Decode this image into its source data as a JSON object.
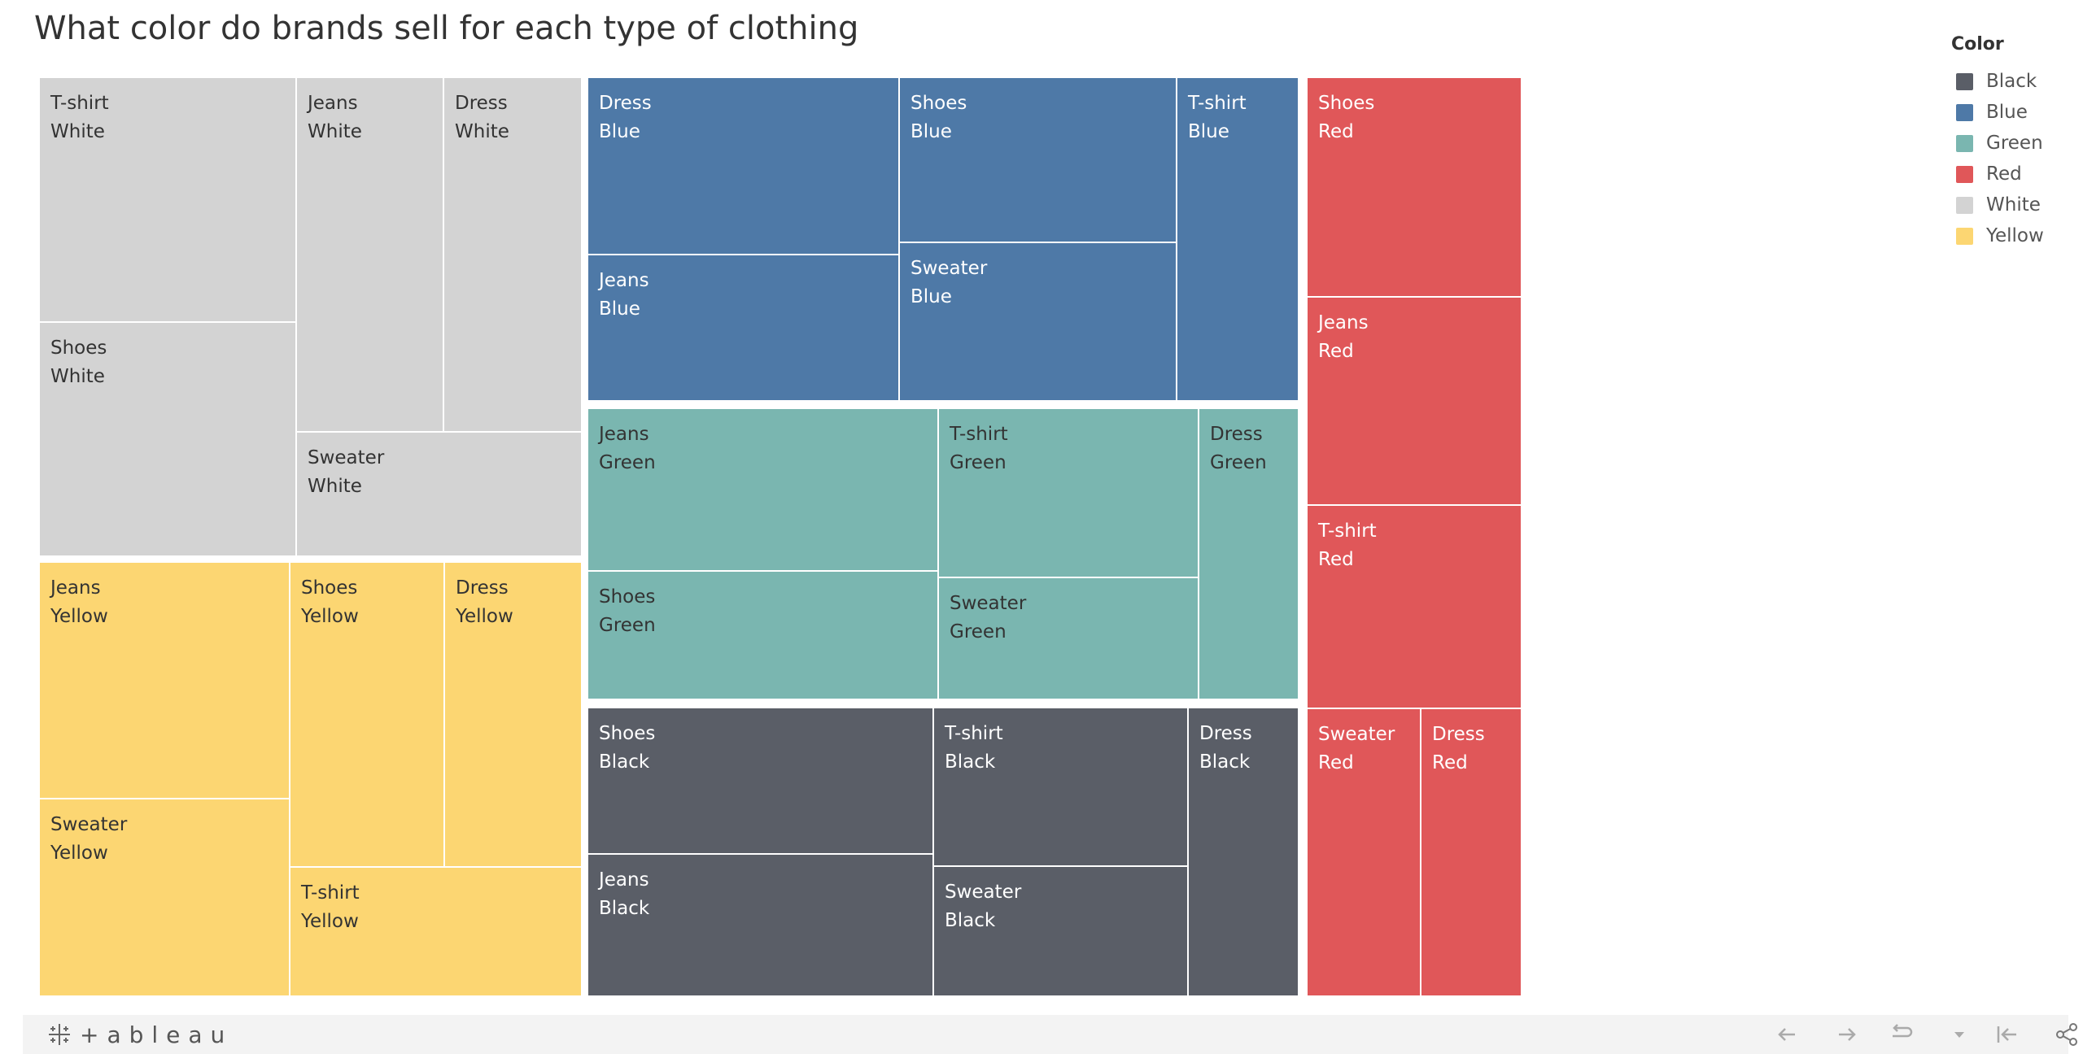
{
  "title": "What color do brands sell for each type of clothing",
  "colors": {
    "Black": "#5a5e67",
    "Blue": "#4e79a7",
    "Green": "#7ab6b0",
    "Red": "#e05759",
    "White": "#d3d3d3",
    "Yellow": "#fcd672"
  },
  "legend": {
    "title": "Color",
    "items": [
      "Black",
      "Blue",
      "Green",
      "Red",
      "White",
      "Yellow"
    ]
  },
  "chart_data": {
    "type": "treemap",
    "title": "What color do brands sell for each type of clothing",
    "groups": [
      {
        "color": "White",
        "children": [
          {
            "type": "T-shirt",
            "color": "White"
          },
          {
            "type": "Jeans",
            "color": "White"
          },
          {
            "type": "Dress",
            "color": "White"
          },
          {
            "type": "Shoes",
            "color": "White"
          },
          {
            "type": "Sweater",
            "color": "White"
          }
        ]
      },
      {
        "color": "Yellow",
        "children": [
          {
            "type": "Jeans",
            "color": "Yellow"
          },
          {
            "type": "Shoes",
            "color": "Yellow"
          },
          {
            "type": "Dress",
            "color": "Yellow"
          },
          {
            "type": "Sweater",
            "color": "Yellow"
          },
          {
            "type": "T-shirt",
            "color": "Yellow"
          }
        ]
      },
      {
        "color": "Blue",
        "children": [
          {
            "type": "Dress",
            "color": "Blue"
          },
          {
            "type": "Shoes",
            "color": "Blue"
          },
          {
            "type": "T-shirt",
            "color": "Blue"
          },
          {
            "type": "Jeans",
            "color": "Blue"
          },
          {
            "type": "Sweater",
            "color": "Blue"
          }
        ]
      },
      {
        "color": "Green",
        "children": [
          {
            "type": "Jeans",
            "color": "Green"
          },
          {
            "type": "T-shirt",
            "color": "Green"
          },
          {
            "type": "Dress",
            "color": "Green"
          },
          {
            "type": "Shoes",
            "color": "Green"
          },
          {
            "type": "Sweater",
            "color": "Green"
          }
        ]
      },
      {
        "color": "Black",
        "children": [
          {
            "type": "Shoes",
            "color": "Black"
          },
          {
            "type": "T-shirt",
            "color": "Black"
          },
          {
            "type": "Dress",
            "color": "Black"
          },
          {
            "type": "Jeans",
            "color": "Black"
          },
          {
            "type": "Sweater",
            "color": "Black"
          }
        ]
      },
      {
        "color": "Red",
        "children": [
          {
            "type": "Shoes",
            "color": "Red"
          },
          {
            "type": "Jeans",
            "color": "Red"
          },
          {
            "type": "T-shirt",
            "color": "Red"
          },
          {
            "type": "Sweater",
            "color": "Red"
          },
          {
            "type": "Dress",
            "color": "Red"
          }
        ]
      }
    ]
  },
  "toolbar": {
    "logo_text": "+ableau",
    "icons": [
      "undo-icon",
      "redo-icon",
      "revert-icon",
      "dropdown-icon",
      "reset-icon",
      "share-icon"
    ]
  }
}
